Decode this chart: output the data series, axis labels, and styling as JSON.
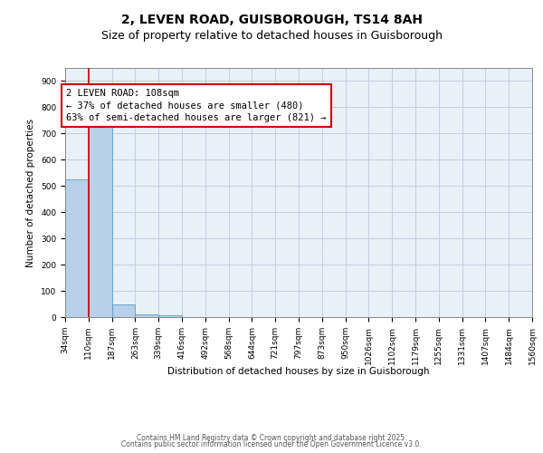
{
  "title1": "2, LEVEN ROAD, GUISBOROUGH, TS14 8AH",
  "title2": "Size of property relative to detached houses in Guisborough",
  "xlabel": "Distribution of detached houses by size in Guisborough",
  "ylabel": "Number of detached properties",
  "bar_values": [
    525,
    728,
    48,
    10,
    8,
    0,
    0,
    0,
    0,
    0,
    0,
    0,
    0,
    0,
    0,
    0,
    0,
    0,
    0,
    0
  ],
  "bar_labels": [
    "34sqm",
    "110sqm",
    "187sqm",
    "263sqm",
    "339sqm",
    "416sqm",
    "492sqm",
    "568sqm",
    "644sqm",
    "721sqm",
    "797sqm",
    "873sqm",
    "950sqm",
    "1026sqm",
    "1102sqm",
    "1179sqm",
    "1255sqm",
    "1331sqm",
    "1407sqm",
    "1484sqm",
    "1560sqm"
  ],
  "bar_color": "#b8d0e8",
  "bar_edge_color": "#5a9ec9",
  "ylim": [
    0,
    950
  ],
  "yticks": [
    0,
    100,
    200,
    300,
    400,
    500,
    600,
    700,
    800,
    900
  ],
  "property_line_x": 1,
  "property_line_color": "#cc0000",
  "annotation_text": "2 LEVEN ROAD: 108sqm\n← 37% of detached houses are smaller (480)\n63% of semi-detached houses are larger (821) →",
  "annotation_box_color": "#cc0000",
  "background_color": "#e8f0f8",
  "grid_color": "#c0d0e0",
  "footer_text1": "Contains HM Land Registry data © Crown copyright and database right 2025.",
  "footer_text2": "Contains public sector information licensed under the Open Government Licence v3.0.",
  "title1_fontsize": 10,
  "title2_fontsize": 9,
  "annotation_fontsize": 7.5,
  "tick_fontsize": 6.5,
  "axis_label_fontsize": 7.5,
  "footer_fontsize": 5.5
}
